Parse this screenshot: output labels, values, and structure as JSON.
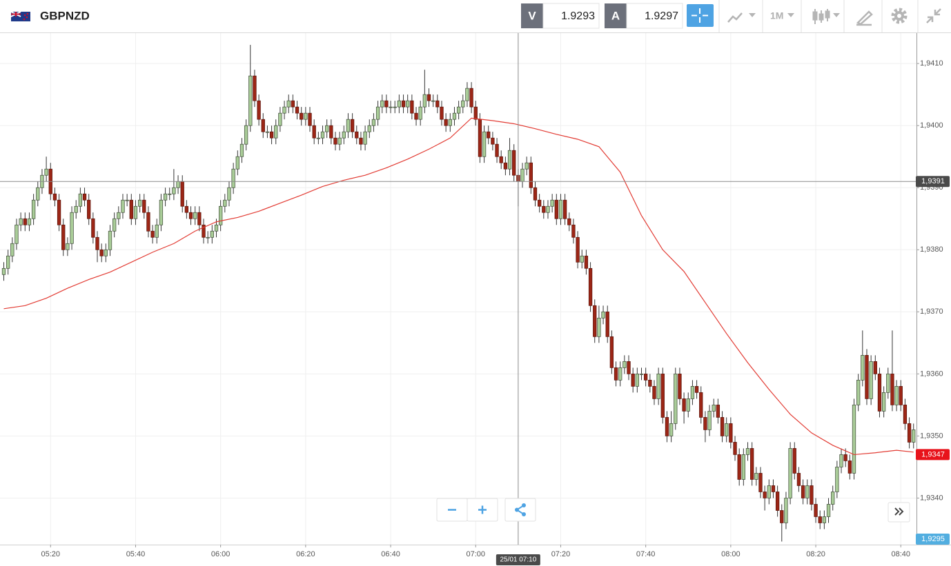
{
  "toolbar": {
    "symbol": "GBPNZD",
    "sell_label": "V",
    "sell_price": "1.9293",
    "buy_label": "A",
    "buy_price": "1.9297",
    "timeframe": "1M"
  },
  "chart_data": {
    "type": "candlestick",
    "x": [
      "05:09",
      "05:10",
      "05:11",
      "05:12",
      "05:13",
      "05:14",
      "05:15",
      "05:16",
      "05:17",
      "05:18",
      "05:19",
      "05:20",
      "05:21",
      "05:22",
      "05:23",
      "05:24",
      "05:25",
      "05:26",
      "05:27",
      "05:28",
      "05:29",
      "05:30",
      "05:31",
      "05:32",
      "05:33",
      "05:34",
      "05:35",
      "05:36",
      "05:37",
      "05:38",
      "05:39",
      "05:40",
      "05:41",
      "05:42",
      "05:43",
      "05:44",
      "05:45",
      "05:46",
      "05:47",
      "05:48",
      "05:49",
      "05:50",
      "05:51",
      "05:52",
      "05:53",
      "05:54",
      "05:55",
      "05:56",
      "05:57",
      "05:58",
      "05:59",
      "06:00",
      "06:01",
      "06:02",
      "06:03",
      "06:04",
      "06:05",
      "06:06",
      "06:07",
      "06:08",
      "06:09",
      "06:10",
      "06:11",
      "06:12",
      "06:13",
      "06:14",
      "06:15",
      "06:16",
      "06:17",
      "06:18",
      "06:19",
      "06:20",
      "06:21",
      "06:22",
      "06:23",
      "06:24",
      "06:25",
      "06:26",
      "06:27",
      "06:28",
      "06:29",
      "06:30",
      "06:31",
      "06:32",
      "06:33",
      "06:34",
      "06:35",
      "06:36",
      "06:37",
      "06:38",
      "06:39",
      "06:40",
      "06:41",
      "06:42",
      "06:43",
      "06:44",
      "06:45",
      "06:46",
      "06:47",
      "06:48",
      "06:49",
      "06:50",
      "06:51",
      "06:52",
      "06:53",
      "06:54",
      "06:55",
      "06:56",
      "06:57",
      "06:58",
      "06:59",
      "07:00",
      "07:01",
      "07:02",
      "07:03",
      "07:04",
      "07:05",
      "07:06",
      "07:07",
      "07:08",
      "07:09",
      "07:10",
      "07:11",
      "07:12",
      "07:13",
      "07:14",
      "07:15",
      "07:16",
      "07:17",
      "07:18",
      "07:19",
      "07:20",
      "07:21",
      "07:22",
      "07:23",
      "07:24",
      "07:25",
      "07:26",
      "07:27",
      "07:28",
      "07:29",
      "07:30",
      "07:31",
      "07:32",
      "07:33",
      "07:34",
      "07:35",
      "07:36",
      "07:37",
      "07:38",
      "07:39",
      "07:40",
      "07:41",
      "07:42",
      "07:43",
      "07:44",
      "07:45",
      "07:46",
      "07:47",
      "07:48",
      "07:49",
      "07:50",
      "07:51",
      "07:52",
      "07:53",
      "07:54",
      "07:55",
      "07:56",
      "07:57",
      "07:58",
      "07:59",
      "08:00",
      "08:01",
      "08:02",
      "08:03",
      "08:04",
      "08:05",
      "08:06",
      "08:07",
      "08:08",
      "08:09",
      "08:10",
      "08:11",
      "08:12",
      "08:13",
      "08:14",
      "08:15",
      "08:16",
      "08:17",
      "08:18",
      "08:19",
      "08:20",
      "08:21",
      "08:22",
      "08:23",
      "08:24",
      "08:25",
      "08:26",
      "08:27",
      "08:28",
      "08:29",
      "08:30",
      "08:31",
      "08:32",
      "08:33",
      "08:34",
      "08:35",
      "08:36",
      "08:37",
      "08:38",
      "08:39",
      "08:40",
      "08:41",
      "08:42",
      "08:43"
    ],
    "open": [
      1.9376,
      1.9377,
      1.9379,
      1.9381,
      1.9384,
      1.9385,
      1.9384,
      1.9385,
      1.9388,
      1.939,
      1.9392,
      1.9393,
      1.9389,
      1.9388,
      1.9384,
      1.938,
      1.9381,
      1.9386,
      1.9387,
      1.9389,
      1.9388,
      1.9385,
      1.9382,
      1.938,
      1.9379,
      1.938,
      1.9383,
      1.9385,
      1.9386,
      1.9388,
      1.9388,
      1.9385,
      1.9387,
      1.9388,
      1.9386,
      1.9383,
      1.9382,
      1.9384,
      1.9388,
      1.9389,
      1.9389,
      1.939,
      1.9391,
      1.9387,
      1.9386,
      1.9385,
      1.9386,
      1.9384,
      1.9382,
      1.9382,
      1.9383,
      1.9384,
      1.9387,
      1.9388,
      1.939,
      1.9393,
      1.9395,
      1.9397,
      1.94,
      1.9408,
      1.9404,
      1.9401,
      1.9399,
      1.9399,
      1.9398,
      1.94,
      1.9402,
      1.9403,
      1.9404,
      1.9403,
      1.9402,
      1.9401,
      1.9402,
      1.94,
      1.9398,
      1.9398,
      1.9399,
      1.94,
      1.9398,
      1.9397,
      1.9398,
      1.9399,
      1.9401,
      1.9399,
      1.9398,
      1.9397,
      1.9399,
      1.94,
      1.9401,
      1.9403,
      1.9404,
      1.9403,
      1.9403,
      1.9403,
      1.9404,
      1.9403,
      1.9404,
      1.9402,
      1.9401,
      1.9403,
      1.9405,
      1.9404,
      1.9404,
      1.9403,
      1.9401,
      1.94,
      1.9401,
      1.9402,
      1.9403,
      1.9404,
      1.9406,
      1.9403,
      1.9401,
      1.9395,
      1.9399,
      1.9398,
      1.9397,
      1.9395,
      1.9394,
      1.9393,
      1.9396,
      1.9392,
      1.9391,
      1.9393,
      1.9394,
      1.939,
      1.9388,
      1.9387,
      1.9386,
      1.9387,
      1.9388,
      1.9385,
      1.9388,
      1.9385,
      1.9384,
      1.9382,
      1.9378,
      1.9379,
      1.9377,
      1.9371,
      1.9366,
      1.9369,
      1.937,
      1.9366,
      1.9361,
      1.9359,
      1.9361,
      1.9362,
      1.936,
      1.9358,
      1.936,
      1.936,
      1.9359,
      1.9358,
      1.9356,
      1.936,
      1.9353,
      1.935,
      1.9352,
      1.936,
      1.9356,
      1.9354,
      1.9356,
      1.9358,
      1.9357,
      1.9353,
      1.9351,
      1.9354,
      1.9355,
      1.9353,
      1.935,
      1.9352,
      1.9349,
      1.9347,
      1.9343,
      1.9347,
      1.9348,
      1.9343,
      1.9344,
      1.9341,
      1.934,
      1.9342,
      1.9341,
      1.9338,
      1.9336,
      1.934,
      1.9348,
      1.9344,
      1.9342,
      1.934,
      1.9342,
      1.9339,
      1.9337,
      1.9336,
      1.9337,
      1.9339,
      1.9341,
      1.9345,
      1.9347,
      1.9346,
      1.9344,
      1.9355,
      1.9359,
      1.9363,
      1.9356,
      1.9362,
      1.936,
      1.9354,
      1.9357,
      1.936,
      1.9355,
      1.9358,
      1.9355,
      1.9352,
      1.9349
    ],
    "high": [
      1.9378,
      1.938,
      1.9382,
      1.9385,
      1.9386,
      1.9386,
      1.9386,
      1.9389,
      1.9391,
      1.9393,
      1.9395,
      1.9394,
      1.939,
      1.9389,
      1.9385,
      1.9382,
      1.9387,
      1.9388,
      1.939,
      1.939,
      1.9389,
      1.9386,
      1.9383,
      1.9381,
      1.9381,
      1.9384,
      1.9386,
      1.9387,
      1.9389,
      1.9389,
      1.9389,
      1.9388,
      1.9389,
      1.9389,
      1.9387,
      1.9384,
      1.9385,
      1.9389,
      1.939,
      1.939,
      1.9393,
      1.9392,
      1.9392,
      1.9388,
      1.9387,
      1.9387,
      1.9387,
      1.9385,
      1.9383,
      1.9384,
      1.9385,
      1.9388,
      1.9389,
      1.9391,
      1.9394,
      1.9396,
      1.9398,
      1.9401,
      1.9413,
      1.9409,
      1.9405,
      1.9402,
      1.94,
      1.94,
      1.9401,
      1.9403,
      1.9404,
      1.9405,
      1.9405,
      1.9404,
      1.9403,
      1.9403,
      1.9403,
      1.9401,
      1.9399,
      1.94,
      1.9401,
      1.9401,
      1.9399,
      1.9399,
      1.94,
      1.9402,
      1.9402,
      1.94,
      1.9399,
      1.94,
      1.9401,
      1.9402,
      1.9404,
      1.9405,
      1.9405,
      1.9404,
      1.9404,
      1.9405,
      1.9405,
      1.9405,
      1.9405,
      1.9403,
      1.9404,
      1.9409,
      1.9406,
      1.9405,
      1.9405,
      1.9404,
      1.9402,
      1.9402,
      1.9403,
      1.9404,
      1.9405,
      1.9407,
      1.9407,
      1.9404,
      1.9402,
      1.94,
      1.94,
      1.9399,
      1.9398,
      1.9396,
      1.9395,
      1.9398,
      1.9397,
      1.9393,
      1.9394,
      1.9395,
      1.9395,
      1.9391,
      1.9389,
      1.9388,
      1.9388,
      1.9389,
      1.9389,
      1.9389,
      1.9389,
      1.9386,
      1.9385,
      1.9383,
      1.938,
      1.938,
      1.9378,
      1.9372,
      1.9371,
      1.9371,
      1.9371,
      1.9367,
      1.9362,
      1.9362,
      1.9363,
      1.9363,
      1.9361,
      1.9361,
      1.9361,
      1.9361,
      1.936,
      1.9359,
      1.9361,
      1.9361,
      1.9354,
      1.9354,
      1.9361,
      1.9361,
      1.9357,
      1.9357,
      1.9359,
      1.9359,
      1.9358,
      1.9354,
      1.9355,
      1.9356,
      1.9356,
      1.9354,
      1.9353,
      1.9353,
      1.935,
      1.9348,
      1.9348,
      1.9349,
      1.9349,
      1.9345,
      1.9345,
      1.9342,
      1.9343,
      1.9343,
      1.9342,
      1.9339,
      1.9341,
      1.9349,
      1.9349,
      1.9345,
      1.9343,
      1.9343,
      1.9343,
      1.934,
      1.9338,
      1.9338,
      1.934,
      1.9342,
      1.9346,
      1.9348,
      1.9348,
      1.9347,
      1.9356,
      1.936,
      1.9367,
      1.9364,
      1.9363,
      1.9363,
      1.9361,
      1.9358,
      1.9361,
      1.9367,
      1.9359,
      1.9359,
      1.9356,
      1.9353,
      1.9352
    ],
    "low": [
      1.9375,
      1.9376,
      1.9378,
      1.938,
      1.9383,
      1.9383,
      1.9383,
      1.9384,
      1.9387,
      1.9389,
      1.9391,
      1.9388,
      1.9387,
      1.9383,
      1.9379,
      1.9379,
      1.938,
      1.9385,
      1.9386,
      1.9387,
      1.9384,
      1.9381,
      1.9378,
      1.9378,
      1.9378,
      1.9379,
      1.9382,
      1.9384,
      1.9385,
      1.9387,
      1.9384,
      1.9384,
      1.9386,
      1.9385,
      1.9382,
      1.9381,
      1.9381,
      1.9383,
      1.9387,
      1.9388,
      1.9388,
      1.9389,
      1.9386,
      1.9385,
      1.9384,
      1.9384,
      1.9383,
      1.9381,
      1.9381,
      1.9381,
      1.9382,
      1.9383,
      1.9386,
      1.9387,
      1.9389,
      1.9392,
      1.9394,
      1.9396,
      1.9399,
      1.9403,
      1.94,
      1.9398,
      1.9398,
      1.9397,
      1.9397,
      1.9399,
      1.9401,
      1.9402,
      1.9402,
      1.9401,
      1.94,
      1.94,
      1.9399,
      1.9397,
      1.9397,
      1.9397,
      1.9398,
      1.9397,
      1.9396,
      1.9396,
      1.9397,
      1.9398,
      1.9398,
      1.9397,
      1.9396,
      1.9396,
      1.9398,
      1.9399,
      1.94,
      1.9402,
      1.9402,
      1.9402,
      1.9402,
      1.9402,
      1.9402,
      1.9402,
      1.9401,
      1.94,
      1.94,
      1.9402,
      1.9403,
      1.9403,
      1.9402,
      1.94,
      1.9399,
      1.9399,
      1.94,
      1.9401,
      1.9402,
      1.9403,
      1.9402,
      1.94,
      1.9394,
      1.9394,
      1.9397,
      1.9396,
      1.9394,
      1.9393,
      1.9392,
      1.9392,
      1.9391,
      1.9387,
      1.939,
      1.9392,
      1.9389,
      1.9387,
      1.9386,
      1.9385,
      1.9385,
      1.9386,
      1.9384,
      1.9384,
      1.9384,
      1.9383,
      1.9381,
      1.9377,
      1.9377,
      1.9376,
      1.937,
      1.9365,
      1.9365,
      1.9368,
      1.9365,
      1.936,
      1.9358,
      1.9358,
      1.936,
      1.9359,
      1.9357,
      1.9357,
      1.9359,
      1.9358,
      1.9357,
      1.9355,
      1.9355,
      1.9352,
      1.9349,
      1.9349,
      1.9351,
      1.9355,
      1.9352,
      1.9353,
      1.9355,
      1.9356,
      1.9352,
      1.9349,
      1.935,
      1.9353,
      1.9352,
      1.9349,
      1.9349,
      1.9348,
      1.9346,
      1.9342,
      1.9342,
      1.9346,
      1.9342,
      1.9342,
      1.934,
      1.9338,
      1.9339,
      1.934,
      1.9337,
      1.9333,
      1.9335,
      1.9339,
      1.9343,
      1.9341,
      1.9339,
      1.9339,
      1.9338,
      1.9336,
      1.9335,
      1.9335,
      1.9336,
      1.9338,
      1.934,
      1.9344,
      1.9345,
      1.9343,
      1.9343,
      1.9354,
      1.9358,
      1.9355,
      1.9355,
      1.9359,
      1.9353,
      1.9353,
      1.9356,
      1.9354,
      1.9354,
      1.9354,
      1.9351,
      1.9348,
      1.9348
    ],
    "close": [
      1.9377,
      1.9379,
      1.9381,
      1.9384,
      1.9385,
      1.9384,
      1.9385,
      1.9388,
      1.939,
      1.9392,
      1.9393,
      1.9389,
      1.9388,
      1.9384,
      1.938,
      1.9381,
      1.9386,
      1.9387,
      1.9389,
      1.9388,
      1.9385,
      1.9382,
      1.938,
      1.9379,
      1.938,
      1.9383,
      1.9385,
      1.9386,
      1.9388,
      1.9388,
      1.9385,
      1.9387,
      1.9388,
      1.9386,
      1.9383,
      1.9382,
      1.9384,
      1.9388,
      1.9389,
      1.9389,
      1.939,
      1.9391,
      1.9387,
      1.9386,
      1.9385,
      1.9386,
      1.9384,
      1.9382,
      1.9382,
      1.9383,
      1.9384,
      1.9387,
      1.9388,
      1.939,
      1.9393,
      1.9395,
      1.9397,
      1.94,
      1.9408,
      1.9404,
      1.9401,
      1.9399,
      1.9399,
      1.9398,
      1.94,
      1.9402,
      1.9403,
      1.9404,
      1.9403,
      1.9402,
      1.9401,
      1.9402,
      1.94,
      1.9398,
      1.9398,
      1.9399,
      1.94,
      1.9398,
      1.9397,
      1.9398,
      1.9399,
      1.9401,
      1.9399,
      1.9398,
      1.9397,
      1.9399,
      1.94,
      1.9401,
      1.9403,
      1.9404,
      1.9403,
      1.9403,
      1.9403,
      1.9404,
      1.9403,
      1.9404,
      1.9402,
      1.9401,
      1.9403,
      1.9405,
      1.9404,
      1.9404,
      1.9403,
      1.9401,
      1.94,
      1.9401,
      1.9402,
      1.9403,
      1.9404,
      1.9406,
      1.9403,
      1.9401,
      1.9395,
      1.9399,
      1.9398,
      1.9397,
      1.9395,
      1.9394,
      1.9393,
      1.9396,
      1.9392,
      1.9391,
      1.9393,
      1.9394,
      1.939,
      1.9388,
      1.9387,
      1.9386,
      1.9387,
      1.9388,
      1.9385,
      1.9388,
      1.9385,
      1.9384,
      1.9382,
      1.9378,
      1.9379,
      1.9377,
      1.9371,
      1.9366,
      1.9369,
      1.937,
      1.9366,
      1.9361,
      1.9359,
      1.9361,
      1.9362,
      1.936,
      1.9358,
      1.936,
      1.936,
      1.9359,
      1.9358,
      1.9356,
      1.936,
      1.9353,
      1.935,
      1.9352,
      1.936,
      1.9356,
      1.9354,
      1.9356,
      1.9358,
      1.9357,
      1.9353,
      1.9351,
      1.9354,
      1.9355,
      1.9353,
      1.935,
      1.9352,
      1.9349,
      1.9347,
      1.9343,
      1.9347,
      1.9348,
      1.9343,
      1.9344,
      1.9341,
      1.934,
      1.9342,
      1.9341,
      1.9338,
      1.9336,
      1.934,
      1.9348,
      1.9344,
      1.9342,
      1.934,
      1.9342,
      1.9339,
      1.9337,
      1.9336,
      1.9337,
      1.9339,
      1.9341,
      1.9345,
      1.9347,
      1.9346,
      1.9344,
      1.9355,
      1.9359,
      1.9363,
      1.9356,
      1.9362,
      1.936,
      1.9354,
      1.9357,
      1.936,
      1.9355,
      1.9358,
      1.9355,
      1.9352,
      1.9349,
      1.9351
    ],
    "up_color": "#a9cc98",
    "down_color": "#9c2616",
    "lines": [
      {
        "color": "#e23a32",
        "x": [
          "05:09",
          "05:14",
          "05:19",
          "05:24",
          "05:29",
          "05:34",
          "05:39",
          "05:44",
          "05:49",
          "05:54",
          "05:59",
          "06:04",
          "06:09",
          "06:14",
          "06:19",
          "06:24",
          "06:29",
          "06:34",
          "06:39",
          "06:44",
          "06:49",
          "06:54",
          "06:59",
          "07:04",
          "07:09",
          "07:14",
          "07:19",
          "07:24",
          "07:29",
          "07:34",
          "07:39",
          "07:44",
          "07:49",
          "07:54",
          "07:59",
          "08:04",
          "08:09",
          "08:14",
          "08:19",
          "08:24",
          "08:29",
          "08:34",
          "08:39",
          "08:43"
        ],
        "values": [
          1.93705,
          1.9371,
          1.93722,
          1.93738,
          1.93752,
          1.93764,
          1.9378,
          1.93796,
          1.9381,
          1.9383,
          1.93845,
          1.93852,
          1.93862,
          1.93875,
          1.93888,
          1.93902,
          1.93912,
          1.9392,
          1.93932,
          1.93946,
          1.93962,
          1.9398,
          1.94012,
          1.94008,
          1.94003,
          1.93995,
          1.93986,
          1.93978,
          1.93966,
          1.93925,
          1.93855,
          1.938,
          1.93765,
          1.93715,
          1.93665,
          1.93618,
          1.93575,
          1.93535,
          1.93505,
          1.93485,
          1.9347,
          1.93473,
          1.93477,
          1.93474
        ]
      }
    ],
    "ylim": [
      1.93325,
      1.94149
    ],
    "yticks": [
      {
        "value": 1.934,
        "label": "1,9340"
      },
      {
        "value": 1.935,
        "label": "1,9350"
      },
      {
        "value": 1.936,
        "label": "1,9360"
      },
      {
        "value": 1.937,
        "label": "1,9370"
      },
      {
        "value": 1.938,
        "label": "1,9380"
      },
      {
        "value": 1.939,
        "label": "1,9390"
      },
      {
        "value": 1.94,
        "label": "1,9400"
      },
      {
        "value": 1.941,
        "label": "1,9410"
      }
    ],
    "xticks": [
      "05:20",
      "05:40",
      "06:00",
      "06:20",
      "06:40",
      "07:00",
      "07:20",
      "07:40",
      "08:00",
      "08:20",
      "08:40"
    ],
    "grid": true,
    "crosshair": {
      "x": "07:10",
      "label": "25/01 07:10",
      "y": {
        "value": 1.9391,
        "label": "1,9391"
      }
    },
    "last_price": {
      "value": 1.9347,
      "label": "1,9347",
      "color": "#e8131b"
    },
    "bottom_label": {
      "text": "1,9295",
      "color": "#52aee0"
    }
  }
}
